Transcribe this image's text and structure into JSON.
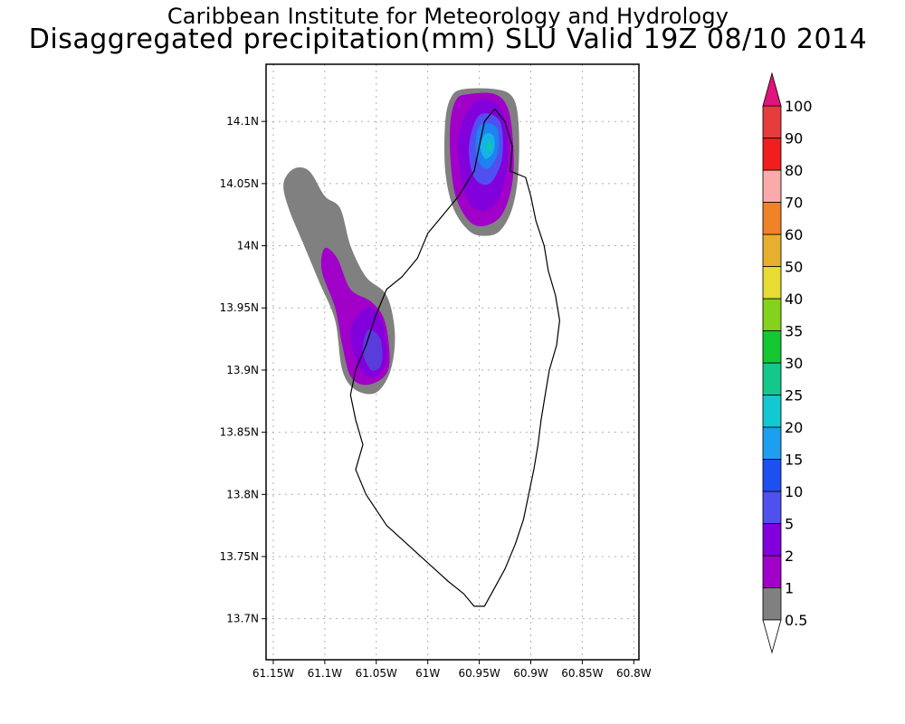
{
  "header": {
    "title": "Caribbean Institute for Meteorology and Hydrology",
    "subtitle": "Disaggregated precipitation(mm) SLU Valid 19Z 08/10 2014"
  },
  "map": {
    "longitude_ticks": [
      "61.15W",
      "61.1W",
      "61.05W",
      "61W",
      "60.95W",
      "60.9W",
      "60.85W",
      "60.8W"
    ],
    "longitude_values": [
      -61.15,
      -61.1,
      -61.05,
      -61.0,
      -60.95,
      -60.9,
      -60.85,
      -60.8
    ],
    "latitude_ticks": [
      "14.1N",
      "14.05N",
      "14N",
      "13.95N",
      "13.9N",
      "13.85N",
      "13.8N",
      "13.75N",
      "13.7N"
    ],
    "latitude_values": [
      14.1,
      14.05,
      14.0,
      13.95,
      13.9,
      13.85,
      13.8,
      13.75,
      13.7
    ],
    "lon_range": [
      -61.157,
      -60.795
    ],
    "lat_range": [
      13.667,
      14.146
    ],
    "grid": true,
    "island_outline": [
      [
        -60.92,
        14.06
      ],
      [
        -60.905,
        14.055
      ],
      [
        -60.9,
        14.04
      ],
      [
        -60.895,
        14.02
      ],
      [
        -60.887,
        14.0
      ],
      [
        -60.883,
        13.98
      ],
      [
        -60.876,
        13.96
      ],
      [
        -60.872,
        13.94
      ],
      [
        -60.875,
        13.92
      ],
      [
        -60.882,
        13.9
      ],
      [
        -60.886,
        13.88
      ],
      [
        -60.89,
        13.86
      ],
      [
        -60.893,
        13.84
      ],
      [
        -60.897,
        13.82
      ],
      [
        -60.902,
        13.8
      ],
      [
        -60.907,
        13.78
      ],
      [
        -60.915,
        13.76
      ],
      [
        -60.925,
        13.74
      ],
      [
        -60.935,
        13.725
      ],
      [
        -60.945,
        13.71
      ],
      [
        -60.955,
        13.71
      ],
      [
        -60.965,
        13.72
      ],
      [
        -60.98,
        13.73
      ],
      [
        -61.0,
        13.745
      ],
      [
        -61.02,
        13.76
      ],
      [
        -61.04,
        13.775
      ],
      [
        -61.06,
        13.8
      ],
      [
        -61.07,
        13.82
      ],
      [
        -61.063,
        13.84
      ],
      [
        -61.07,
        13.86
      ],
      [
        -61.075,
        13.88
      ],
      [
        -61.07,
        13.9
      ],
      [
        -61.06,
        13.92
      ],
      [
        -61.05,
        13.945
      ],
      [
        -61.04,
        13.965
      ],
      [
        -61.025,
        13.975
      ],
      [
        -61.01,
        13.99
      ],
      [
        -61.0,
        14.01
      ],
      [
        -60.985,
        14.025
      ],
      [
        -60.97,
        14.04
      ],
      [
        -60.955,
        14.06
      ],
      [
        -60.95,
        14.08
      ],
      [
        -60.945,
        14.1
      ],
      [
        -60.935,
        14.11
      ],
      [
        -60.925,
        14.1
      ],
      [
        -60.918,
        14.08
      ],
      [
        -60.92,
        14.06
      ]
    ],
    "contours": [
      {
        "level": "0.5-1",
        "color": "#808080",
        "points": [
          [
            -60.965,
            14.126
          ],
          [
            -60.935,
            14.126
          ],
          [
            -60.918,
            14.12
          ],
          [
            -60.912,
            14.1
          ],
          [
            -60.912,
            14.06
          ],
          [
            -60.918,
            14.03
          ],
          [
            -60.93,
            14.012
          ],
          [
            -60.945,
            14.008
          ],
          [
            -60.96,
            14.012
          ],
          [
            -60.975,
            14.03
          ],
          [
            -60.983,
            14.06
          ],
          [
            -60.983,
            14.1
          ],
          [
            -60.977,
            14.12
          ]
        ]
      },
      {
        "level": "0.5-1",
        "color": "#808080",
        "points": [
          [
            -61.13,
            14.062
          ],
          [
            -61.115,
            14.06
          ],
          [
            -61.1,
            14.04
          ],
          [
            -61.085,
            14.03
          ],
          [
            -61.075,
            14.0
          ],
          [
            -61.06,
            13.975
          ],
          [
            -61.04,
            13.96
          ],
          [
            -61.032,
            13.93
          ],
          [
            -61.036,
            13.9
          ],
          [
            -61.05,
            13.882
          ],
          [
            -61.07,
            13.884
          ],
          [
            -61.083,
            13.9
          ],
          [
            -61.09,
            13.94
          ],
          [
            -61.105,
            13.97
          ],
          [
            -61.12,
            14.0
          ],
          [
            -61.135,
            14.03
          ],
          [
            -61.14,
            14.05
          ]
        ]
      },
      {
        "level": "1-2",
        "color": "#a000c8",
        "points": [
          [
            -60.96,
            14.122
          ],
          [
            -60.935,
            14.122
          ],
          [
            -60.922,
            14.11
          ],
          [
            -60.917,
            14.08
          ],
          [
            -60.918,
            14.05
          ],
          [
            -60.928,
            14.025
          ],
          [
            -60.945,
            14.016
          ],
          [
            -60.96,
            14.02
          ],
          [
            -60.973,
            14.04
          ],
          [
            -60.978,
            14.07
          ],
          [
            -60.978,
            14.1
          ],
          [
            -60.972,
            14.118
          ]
        ]
      },
      {
        "level": "1-2",
        "color": "#a000c8",
        "points": [
          [
            -61.1,
            13.998
          ],
          [
            -61.088,
            13.99
          ],
          [
            -61.075,
            13.965
          ],
          [
            -61.055,
            13.955
          ],
          [
            -61.042,
            13.94
          ],
          [
            -61.037,
            13.91
          ],
          [
            -61.042,
            13.895
          ],
          [
            -61.06,
            13.888
          ],
          [
            -61.075,
            13.895
          ],
          [
            -61.083,
            13.92
          ],
          [
            -61.09,
            13.95
          ],
          [
            -61.103,
            13.98
          ]
        ]
      },
      {
        "level": "2-5",
        "color": "#8200dc",
        "points": [
          [
            -60.955,
            14.115
          ],
          [
            -60.935,
            14.115
          ],
          [
            -60.925,
            14.1
          ],
          [
            -60.922,
            14.07
          ],
          [
            -60.93,
            14.04
          ],
          [
            -60.945,
            14.028
          ],
          [
            -60.96,
            14.035
          ],
          [
            -60.968,
            14.06
          ],
          [
            -60.97,
            14.09
          ]
        ]
      },
      {
        "level": "2-5",
        "color": "#8200dc",
        "points": [
          [
            -61.06,
            13.95
          ],
          [
            -61.045,
            13.94
          ],
          [
            -61.04,
            13.91
          ],
          [
            -61.05,
            13.895
          ],
          [
            -61.065,
            13.9
          ],
          [
            -61.075,
            13.93
          ]
        ]
      },
      {
        "level": "5-10",
        "color": "#5050f0",
        "points": [
          [
            -60.95,
            14.105
          ],
          [
            -60.93,
            14.1
          ],
          [
            -60.928,
            14.07
          ],
          [
            -60.94,
            14.05
          ],
          [
            -60.955,
            14.055
          ],
          [
            -60.96,
            14.08
          ]
        ]
      },
      {
        "level": "5-10",
        "color": "#5a3cdc",
        "points": [
          [
            -61.058,
            13.932
          ],
          [
            -61.046,
            13.925
          ],
          [
            -61.045,
            13.905
          ],
          [
            -61.055,
            13.9
          ],
          [
            -61.063,
            13.915
          ]
        ]
      },
      {
        "level": "10-15",
        "color": "#1e82f0",
        "points": [
          [
            -60.947,
            14.098
          ],
          [
            -60.933,
            14.095
          ],
          [
            -60.932,
            14.075
          ],
          [
            -60.942,
            14.062
          ],
          [
            -60.952,
            14.07
          ],
          [
            -60.953,
            14.088
          ]
        ]
      },
      {
        "level": "15-20",
        "color": "#14b4e6",
        "points": [
          [
            -60.944,
            14.09
          ],
          [
            -60.936,
            14.088
          ],
          [
            -60.936,
            14.076
          ],
          [
            -60.944,
            14.07
          ],
          [
            -60.949,
            14.08
          ]
        ]
      },
      {
        "level": "20-25",
        "color": "#14c8a0",
        "points": [
          [
            -60.941,
            14.084
          ],
          [
            -60.938,
            14.082
          ],
          [
            -60.939,
            14.077
          ],
          [
            -60.943,
            14.078
          ]
        ]
      }
    ]
  },
  "colorbar": {
    "labels": [
      "0.5",
      "1",
      "2",
      "5",
      "10",
      "15",
      "20",
      "25",
      "30",
      "35",
      "40",
      "50",
      "60",
      "70",
      "80",
      "90",
      "100"
    ],
    "colors": [
      "#808080",
      "#a000c8",
      "#8200dc",
      "#5050f0",
      "#1e50f0",
      "#1e9ef0",
      "#14c8d2",
      "#14c88c",
      "#14c832",
      "#82d21e",
      "#e6dc32",
      "#e6af2d",
      "#f08228",
      "#faaaaa",
      "#f01e1e",
      "#e63c3c"
    ],
    "under_color": "#ffffff",
    "over_color": "#e0147d"
  }
}
